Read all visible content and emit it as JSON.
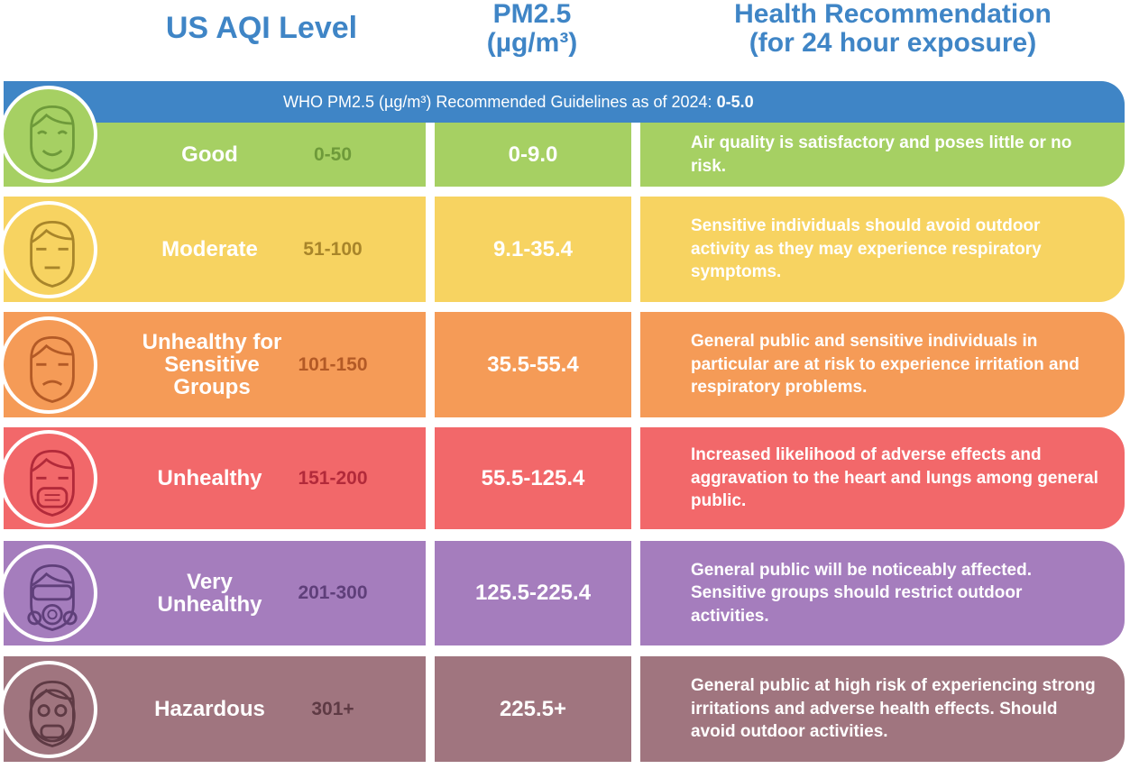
{
  "header": {
    "aqi_label": "US AQI Level",
    "pm_label": "PM2.5",
    "pm_unit": "(µg/m³)",
    "health_label": "Health Recommendation",
    "health_sub": "(for 24 hour exposure)"
  },
  "who_banner": {
    "text": "WHO PM2.5 (µg/m³) Recommended Guidelines as of 2024:",
    "value": "0-5.0"
  },
  "rows": [
    {
      "level": "Good",
      "aqi": "0-50",
      "pm": "0-9.0",
      "recommendation": "Air quality is satisfactory and poses little or no risk.",
      "color": "#a6d063",
      "range_color": "#6e9a3a",
      "face": "happy-face-icon"
    },
    {
      "level": "Moderate",
      "aqi": "51-100",
      "pm": "9.1-35.4",
      "recommendation": "Sensitive individuals should avoid outdoor activity as they may experience respiratory symptoms.",
      "color": "#f7d361",
      "range_color": "#a8852a",
      "face": "neutral-face-icon"
    },
    {
      "level": "Unhealthy for Sensitive Groups",
      "aqi": "101-150",
      "pm": "35.5-55.4",
      "recommendation": "General public and sensitive individuals in particular are at risk to experience irritation and respiratory problems.",
      "color": "#f59b57",
      "range_color": "#b35a26",
      "face": "sad-face-icon"
    },
    {
      "level": "Unhealthy",
      "aqi": "151-200",
      "pm": "55.5-125.4",
      "recommendation": "Increased likelihood of adverse effects and aggravation to the heart and lungs among general public.",
      "color": "#f2686a",
      "range_color": "#b22a3a",
      "face": "mask-face-icon"
    },
    {
      "level": "Very Unhealthy",
      "aqi": "201-300",
      "pm": "125.5-225.4",
      "recommendation": "General public will be noticeably affected. Sensitive groups should restrict outdoor activities.",
      "color": "#a57dbd",
      "range_color": "#5f3f7a",
      "face": "respirator-face-icon"
    },
    {
      "level": "Hazardous",
      "aqi": "301+",
      "pm": "225.5+",
      "recommendation": "General public at high risk of experiencing strong irritations and adverse health effects. Should avoid outdoor activities.",
      "color": "#a0757f",
      "range_color": "#5e3a44",
      "face": "gas-mask-face-icon"
    }
  ]
}
